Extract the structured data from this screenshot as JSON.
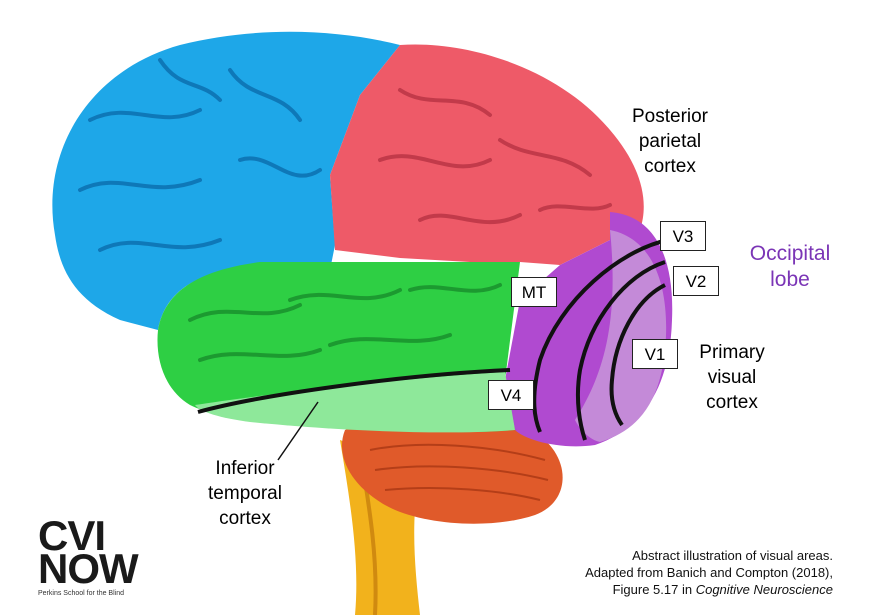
{
  "labels": {
    "posterior_parietal": [
      "Posterior",
      "parietal",
      "cortex"
    ],
    "occipital": [
      "Occipital",
      "lobe"
    ],
    "primary_visual": [
      "Primary",
      "visual",
      "cortex"
    ],
    "inferior_temporal": [
      "Inferior",
      "temporal",
      "cortex"
    ]
  },
  "areas": {
    "v3": "V3",
    "v2": "V2",
    "v1": "V1",
    "mt": "MT",
    "v4": "V4"
  },
  "logo": {
    "line1": "CVI",
    "line2": "NOW",
    "org": "Perkins School for the Blind"
  },
  "caption": {
    "line1": "Abstract illustration of visual areas.",
    "line2": "Adapted from Banich and Compton (2018),",
    "line3_prefix": "Figure 5.17 in ",
    "line3_italic": "Cognitive Neuroscience"
  },
  "colors": {
    "frontal": "#1ea7e8",
    "parietal": "#ee5a68",
    "temporal": "#2ecf44",
    "temporal_light": "#8ee89a",
    "occipital": "#b04ad0",
    "occipital_light": "#c48ad8",
    "cerebellum": "#e05a2a",
    "brainstem": "#f2b21c",
    "label_purple": "#7b35b6"
  }
}
